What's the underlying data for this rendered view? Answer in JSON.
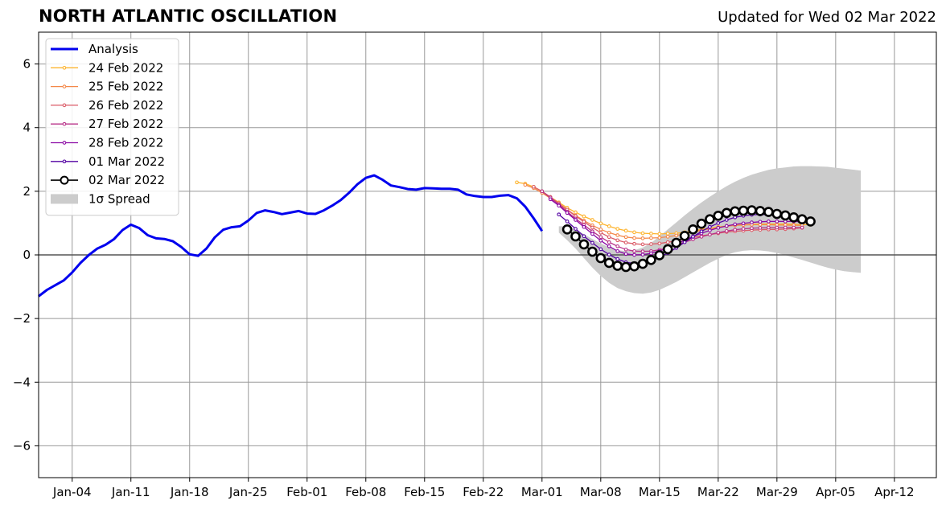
{
  "header": {
    "title": "NORTH ATLANTIC OSCILLATION",
    "updated": "Updated for Wed 02 Mar 2022"
  },
  "chart_data": {
    "type": "line",
    "title": "NORTH ATLANTIC OSCILLATION",
    "subtitle": "Updated for Wed 02 Mar 2022",
    "x_type": "date",
    "xlim": [
      "2021-12-31",
      "2022-04-17"
    ],
    "ylim": [
      -7,
      7
    ],
    "grid": true,
    "legend_position": "top-left",
    "x_ticks": [
      {
        "date": "2022-01-04",
        "label": "Jan-04"
      },
      {
        "date": "2022-01-11",
        "label": "Jan-11"
      },
      {
        "date": "2022-01-18",
        "label": "Jan-18"
      },
      {
        "date": "2022-01-25",
        "label": "Jan-25"
      },
      {
        "date": "2022-02-01",
        "label": "Feb-01"
      },
      {
        "date": "2022-02-08",
        "label": "Feb-08"
      },
      {
        "date": "2022-02-15",
        "label": "Feb-15"
      },
      {
        "date": "2022-02-22",
        "label": "Feb-22"
      },
      {
        "date": "2022-03-01",
        "label": "Mar-01"
      },
      {
        "date": "2022-03-08",
        "label": "Mar-08"
      },
      {
        "date": "2022-03-15",
        "label": "Mar-15"
      },
      {
        "date": "2022-03-22",
        "label": "Mar-22"
      },
      {
        "date": "2022-03-29",
        "label": "Mar-29"
      },
      {
        "date": "2022-04-05",
        "label": "Apr-05"
      },
      {
        "date": "2022-04-12",
        "label": "Apr-12"
      }
    ],
    "y_ticks": [
      {
        "value": 6,
        "label": "6"
      },
      {
        "value": 4,
        "label": "4"
      },
      {
        "value": 2,
        "label": "2"
      },
      {
        "value": 0,
        "label": "0"
      },
      {
        "value": -2,
        "label": "−2"
      },
      {
        "value": -4,
        "label": "−4"
      },
      {
        "value": -6,
        "label": "−6"
      }
    ],
    "analysis": {
      "name": "Analysis",
      "color": "#0000ee",
      "start": "2021-12-31",
      "values": [
        -1.3,
        -1.1,
        -0.95,
        -0.8,
        -0.55,
        -0.25,
        0.0,
        0.2,
        0.32,
        0.5,
        0.78,
        0.95,
        0.84,
        0.62,
        0.52,
        0.5,
        0.43,
        0.25,
        0.02,
        -0.03,
        0.2,
        0.55,
        0.79,
        0.87,
        0.9,
        1.08,
        1.32,
        1.4,
        1.35,
        1.28,
        1.33,
        1.38,
        1.3,
        1.29,
        1.4,
        1.55,
        1.72,
        1.95,
        2.22,
        2.42,
        2.5,
        2.36,
        2.18,
        2.13,
        2.07,
        2.05,
        2.1,
        2.09,
        2.08,
        2.08,
        2.05,
        1.9,
        1.85,
        1.82,
        1.82,
        1.86,
        1.88,
        1.78,
        1.52,
        1.15,
        0.75
      ]
    },
    "forecasts": [
      {
        "name": "24 Feb 2022",
        "color": "#fdb42f",
        "start": "2022-02-26",
        "marker": "small",
        "values": [
          2.28,
          2.24,
          2.14,
          2.0,
          1.82,
          1.65,
          1.48,
          1.34,
          1.21,
          1.1,
          0.99,
          0.9,
          0.82,
          0.76,
          0.71,
          0.68,
          0.67,
          0.66,
          0.67,
          0.68,
          0.71,
          0.75,
          0.8,
          0.84,
          0.88,
          0.91,
          0.93,
          0.95,
          0.96,
          0.97,
          0.97,
          0.97,
          0.97,
          0.96,
          0.95,
          0.95
        ]
      },
      {
        "name": "25 Feb 2022",
        "color": "#f48849",
        "start": "2022-02-27",
        "marker": "small",
        "values": [
          2.2,
          2.1,
          1.95,
          1.78,
          1.6,
          1.42,
          1.24,
          1.08,
          0.93,
          0.8,
          0.7,
          0.62,
          0.56,
          0.53,
          0.52,
          0.53,
          0.54,
          0.57,
          0.61,
          0.66,
          0.71,
          0.77,
          0.82,
          0.86,
          0.9,
          0.93,
          0.94,
          0.95,
          0.95,
          0.95,
          0.94,
          0.94,
          0.93,
          0.93
        ]
      },
      {
        "name": "26 Feb 2022",
        "color": "#db5c68",
        "start": "2022-02-28",
        "marker": "small",
        "values": [
          2.14,
          2.0,
          1.82,
          1.62,
          1.42,
          1.22,
          1.04,
          0.86,
          0.7,
          0.56,
          0.46,
          0.39,
          0.35,
          0.33,
          0.34,
          0.36,
          0.4,
          0.44,
          0.5,
          0.55,
          0.6,
          0.64,
          0.68,
          0.72,
          0.74,
          0.76,
          0.78,
          0.79,
          0.8,
          0.8,
          0.81,
          0.83,
          0.85
        ]
      },
      {
        "name": "27 Feb 2022",
        "color": "#b83289",
        "start": "2022-03-01",
        "marker": "small",
        "values": [
          2.0,
          1.8,
          1.58,
          1.36,
          1.14,
          0.94,
          0.74,
          0.56,
          0.4,
          0.27,
          0.17,
          0.12,
          0.11,
          0.12,
          0.16,
          0.23,
          0.31,
          0.4,
          0.49,
          0.57,
          0.64,
          0.7,
          0.75,
          0.79,
          0.82,
          0.84,
          0.85,
          0.86,
          0.86,
          0.86,
          0.86,
          0.86
        ]
      },
      {
        "name": "28 Feb 2022",
        "color": "#8b0aa5",
        "start": "2022-03-02",
        "marker": "small",
        "values": [
          1.75,
          1.55,
          1.32,
          1.1,
          0.88,
          0.66,
          0.45,
          0.27,
          0.12,
          0.03,
          0.0,
          0.01,
          0.05,
          0.12,
          0.22,
          0.34,
          0.46,
          0.58,
          0.68,
          0.77,
          0.85,
          0.91,
          0.96,
          0.99,
          1.02,
          1.04,
          1.05,
          1.05,
          1.05,
          1.05,
          1.04,
          1.02
        ]
      },
      {
        "name": "01 Mar 2022",
        "color": "#5302a3",
        "start": "2022-03-03",
        "marker": "small",
        "values": [
          1.27,
          1.05,
          0.82,
          0.59,
          0.38,
          0.18,
          0.01,
          -0.13,
          -0.23,
          -0.27,
          -0.25,
          -0.18,
          -0.08,
          0.06,
          0.22,
          0.4,
          0.57,
          0.74,
          0.88,
          1.0,
          1.1,
          1.18,
          1.23,
          1.26,
          1.27,
          1.26,
          1.25,
          1.23,
          1.2,
          1.17,
          1.13
        ]
      },
      {
        "name": "02 Mar 2022",
        "color": "#000000",
        "start": "2022-03-04",
        "marker": "large",
        "values": [
          0.8,
          0.58,
          0.33,
          0.1,
          -0.1,
          -0.25,
          -0.34,
          -0.38,
          -0.36,
          -0.28,
          -0.16,
          -0.01,
          0.18,
          0.38,
          0.6,
          0.8,
          0.98,
          1.12,
          1.23,
          1.32,
          1.37,
          1.39,
          1.4,
          1.38,
          1.35,
          1.29,
          1.24,
          1.18,
          1.12,
          1.05
        ]
      }
    ],
    "spread": {
      "name": "1σ Spread",
      "color": "#cccccc",
      "start": "2022-03-03",
      "upper": [
        0.9,
        0.9,
        0.8,
        0.65,
        0.5,
        0.36,
        0.24,
        0.15,
        0.12,
        0.15,
        0.23,
        0.38,
        0.58,
        0.8,
        1.02,
        1.24,
        1.45,
        1.65,
        1.83,
        2.0,
        2.16,
        2.3,
        2.42,
        2.52,
        2.6,
        2.67,
        2.72,
        2.75,
        2.78,
        2.79,
        2.79,
        2.78,
        2.77,
        2.74,
        2.71,
        2.68,
        2.65
      ],
      "lower": [
        0.7,
        0.46,
        0.2,
        -0.1,
        -0.4,
        -0.66,
        -0.88,
        -1.04,
        -1.14,
        -1.2,
        -1.22,
        -1.18,
        -1.1,
        -0.98,
        -0.85,
        -0.7,
        -0.55,
        -0.4,
        -0.25,
        -0.12,
        0.0,
        0.08,
        0.13,
        0.15,
        0.14,
        0.11,
        0.06,
        -0.01,
        -0.08,
        -0.16,
        -0.24,
        -0.32,
        -0.4,
        -0.46,
        -0.51,
        -0.54,
        -0.56
      ]
    },
    "legend": {
      "entries": [
        "Analysis",
        "24 Feb 2022",
        "25 Feb 2022",
        "26 Feb 2022",
        "27 Feb 2022",
        "28 Feb 2022",
        "01 Mar 2022",
        "02 Mar 2022",
        "1σ Spread"
      ]
    }
  }
}
